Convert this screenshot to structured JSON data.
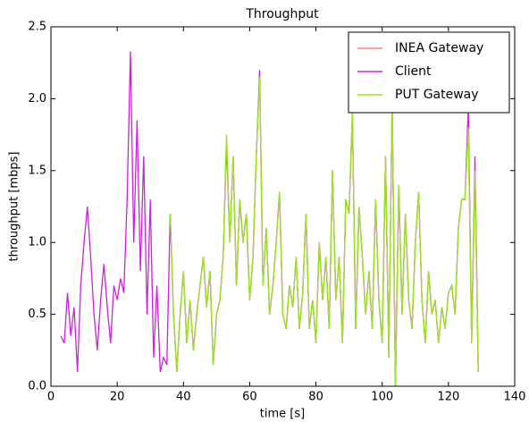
{
  "chart_data": {
    "type": "line",
    "title": "Throughput",
    "x_label": "time [s]",
    "y_label": "throughput [mbps]",
    "x": [
      3,
      4,
      5,
      6,
      7,
      8,
      9,
      10,
      11,
      12,
      13,
      14,
      15,
      16,
      17,
      18,
      19,
      20,
      21,
      22,
      23,
      24,
      25,
      26,
      27,
      28,
      29,
      30,
      31,
      32,
      33,
      34,
      35,
      36,
      37,
      38,
      39,
      40,
      41,
      42,
      43,
      44,
      45,
      46,
      47,
      48,
      49,
      50,
      51,
      52,
      53,
      54,
      55,
      56,
      57,
      58,
      59,
      60,
      61,
      62,
      63,
      64,
      65,
      66,
      67,
      68,
      69,
      70,
      71,
      72,
      73,
      74,
      75,
      76,
      77,
      78,
      79,
      80,
      81,
      82,
      83,
      84,
      85,
      86,
      87,
      88,
      89,
      90,
      91,
      92,
      93,
      94,
      95,
      96,
      97,
      98,
      99,
      100,
      101,
      102,
      103,
      104,
      105,
      106,
      107,
      108,
      109,
      110,
      111,
      112,
      113,
      114,
      115,
      116,
      117,
      118,
      119,
      120,
      121,
      122,
      123,
      124,
      125,
      126,
      127,
      128,
      129
    ],
    "series": [
      {
        "name": "INEA Gateway",
        "color": "#ff8080",
        "values": [
          null,
          null,
          null,
          null,
          null,
          null,
          null,
          null,
          null,
          null,
          null,
          null,
          null,
          null,
          null,
          null,
          null,
          null,
          null,
          null,
          null,
          null,
          null,
          null,
          null,
          null,
          null,
          null,
          null,
          null,
          null,
          null,
          null,
          1.2,
          0.5,
          0.1,
          0.5,
          0.8,
          0.3,
          0.6,
          0.25,
          0.5,
          0.7,
          0.9,
          0.55,
          0.8,
          0.15,
          0.5,
          0.6,
          0.9,
          1.75,
          1.0,
          1.6,
          0.7,
          1.3,
          1.0,
          1.2,
          0.6,
          0.9,
          1.6,
          2.15,
          0.7,
          1.1,
          0.5,
          0.7,
          1.0,
          1.35,
          0.5,
          0.4,
          0.7,
          0.55,
          0.9,
          0.4,
          0.65,
          1.2,
          0.4,
          0.6,
          0.3,
          1.0,
          0.6,
          0.9,
          0.4,
          1.5,
          0.6,
          0.9,
          0.3,
          1.3,
          1.2,
          1.9,
          0.4,
          1.25,
          0.9,
          0.5,
          0.8,
          0.4,
          1.3,
          0.6,
          0.3,
          1.6,
          0.2,
          2.0,
          0.0,
          1.4,
          0.5,
          1.2,
          0.6,
          0.4,
          1.0,
          1.35,
          0.6,
          0.3,
          0.8,
          0.5,
          0.6,
          0.3,
          0.55,
          0.4,
          0.65,
          0.7,
          0.5,
          1.1,
          1.3,
          1.3,
          1.8,
          0.3,
          1.5,
          0.1
        ]
      },
      {
        "name": "Client",
        "color": "#cc22dd",
        "values": [
          0.35,
          0.3,
          0.65,
          0.35,
          0.55,
          0.1,
          0.7,
          1.0,
          1.25,
          0.9,
          0.5,
          0.25,
          0.6,
          0.85,
          0.55,
          0.3,
          0.7,
          0.6,
          0.75,
          0.65,
          1.3,
          2.33,
          1.0,
          1.85,
          0.8,
          1.6,
          0.5,
          1.3,
          0.2,
          0.7,
          0.1,
          0.2,
          0.15,
          1.2,
          0.5,
          0.1,
          0.5,
          0.8,
          0.3,
          0.6,
          0.25,
          0.5,
          0.7,
          0.9,
          0.55,
          0.8,
          0.15,
          0.5,
          0.6,
          0.9,
          1.7,
          1.0,
          1.6,
          0.7,
          1.3,
          1.0,
          1.2,
          0.6,
          0.9,
          1.6,
          2.2,
          0.7,
          1.1,
          0.5,
          0.7,
          1.0,
          1.35,
          0.5,
          0.4,
          0.7,
          0.55,
          0.9,
          0.4,
          0.65,
          1.2,
          0.4,
          0.6,
          0.3,
          1.0,
          0.6,
          0.9,
          0.4,
          1.5,
          0.6,
          0.9,
          0.3,
          1.3,
          1.2,
          1.9,
          0.4,
          1.25,
          0.9,
          0.5,
          0.8,
          0.4,
          1.3,
          0.6,
          0.3,
          1.6,
          0.2,
          2.0,
          0.0,
          1.4,
          0.5,
          1.2,
          0.6,
          0.4,
          1.0,
          1.35,
          0.6,
          0.3,
          0.8,
          0.5,
          0.6,
          0.3,
          0.55,
          0.4,
          0.65,
          0.7,
          0.5,
          1.1,
          1.3,
          1.3,
          1.95,
          0.3,
          1.6,
          0.1
        ]
      },
      {
        "name": "PUT Gateway",
        "color": "#99e625",
        "values": [
          null,
          null,
          null,
          null,
          null,
          null,
          null,
          null,
          null,
          null,
          null,
          null,
          null,
          null,
          null,
          null,
          null,
          null,
          null,
          null,
          null,
          null,
          null,
          null,
          null,
          null,
          null,
          null,
          null,
          null,
          null,
          null,
          null,
          1.2,
          0.5,
          0.1,
          0.5,
          0.8,
          0.3,
          0.6,
          0.25,
          0.5,
          0.7,
          0.9,
          0.55,
          0.8,
          0.15,
          0.5,
          0.6,
          0.9,
          1.75,
          1.0,
          1.6,
          0.7,
          1.3,
          1.0,
          1.2,
          0.6,
          0.9,
          1.6,
          2.15,
          0.7,
          1.1,
          0.5,
          0.7,
          1.0,
          1.35,
          0.5,
          0.4,
          0.7,
          0.55,
          0.9,
          0.4,
          0.65,
          1.2,
          0.4,
          0.6,
          0.3,
          1.0,
          0.6,
          0.9,
          0.4,
          1.5,
          0.6,
          0.9,
          0.3,
          1.3,
          1.2,
          1.9,
          0.4,
          1.25,
          0.9,
          0.5,
          0.8,
          0.4,
          1.3,
          0.6,
          0.3,
          1.6,
          0.2,
          2.0,
          0.0,
          1.4,
          0.5,
          1.2,
          0.6,
          0.4,
          1.0,
          1.35,
          0.6,
          0.3,
          0.8,
          0.5,
          0.6,
          0.3,
          0.55,
          0.4,
          0.65,
          0.7,
          0.5,
          1.1,
          1.3,
          1.3,
          1.8,
          0.3,
          1.5,
          0.1
        ]
      }
    ],
    "xlim": [
      0,
      140
    ],
    "xticks": [
      0,
      20,
      40,
      60,
      80,
      100,
      120,
      140
    ],
    "ylim": [
      0,
      2.5
    ],
    "yticks": [
      {
        "value": 0,
        "label": "0.0"
      },
      0.5,
      {
        "value": 1,
        "label": "1.0"
      },
      1.5,
      {
        "value": 2,
        "label": "2.0"
      },
      2.5
    ],
    "legend": "upper right"
  }
}
